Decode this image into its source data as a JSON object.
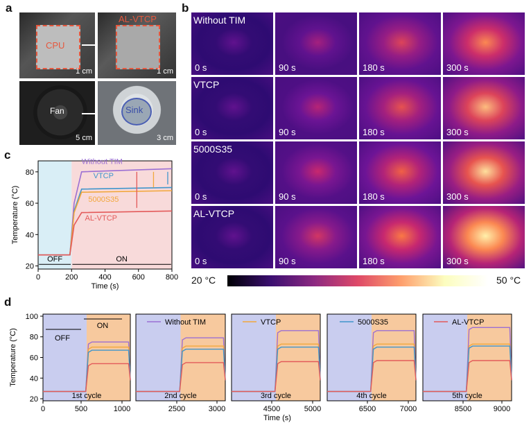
{
  "panel_a": {
    "label": "a",
    "photos": [
      {
        "tag": "CPU",
        "scale": "1 cm"
      },
      {
        "tag": "AL-VTCP",
        "scale": "1 cm"
      },
      {
        "tag": "Fan",
        "scale": "5 cm"
      },
      {
        "tag": "Sink",
        "scale": "3 cm"
      }
    ]
  },
  "panel_b": {
    "label": "b",
    "rows": [
      "Without TIM",
      "VTCP",
      "5000S35",
      "AL-VTCP"
    ],
    "times": [
      "0 s",
      "90 s",
      "180 s",
      "300 s"
    ],
    "colorbar_min": "20 °C",
    "colorbar_max": "50 °C"
  },
  "panel_c": {
    "label": "c"
  },
  "panel_d": {
    "label": "d"
  },
  "chart_data": [
    {
      "type": "line",
      "panel": "c",
      "xlabel": "Time (s)",
      "ylabel": "Temperature (°C)",
      "xlim": [
        0,
        800
      ],
      "ylim": [
        18,
        87
      ],
      "xticks": [
        "0",
        "200",
        "400",
        "600",
        "800"
      ],
      "yticks": [
        "20",
        "40",
        "60",
        "80"
      ],
      "regions": [
        {
          "name": "OFF",
          "from": 0,
          "to": 200
        },
        {
          "name": "ON",
          "from": 200,
          "to": 800
        }
      ],
      "region_labels": [
        "OFF",
        "ON"
      ],
      "series": [
        {
          "name": "Without TIM",
          "color": "#9b6fd3",
          "x": [
            0,
            190,
            215,
            260,
            800
          ],
          "y": [
            27,
            27,
            60,
            80,
            82
          ]
        },
        {
          "name": "VTCP",
          "color": "#3f95cc",
          "x": [
            0,
            190,
            215,
            260,
            800
          ],
          "y": [
            27,
            27,
            55,
            69,
            70
          ]
        },
        {
          "name": "5000S35",
          "color": "#f2a73b",
          "x": [
            0,
            190,
            215,
            260,
            800
          ],
          "y": [
            27,
            27,
            54,
            67,
            68
          ]
        },
        {
          "name": "AL-VTCP",
          "color": "#e35a5a",
          "x": [
            0,
            190,
            215,
            260,
            800
          ],
          "y": [
            27,
            27,
            46,
            54,
            55
          ]
        }
      ],
      "legend": [
        "Without TIM",
        "VTCP",
        "5000S35",
        "AL-VTCP"
      ]
    },
    {
      "type": "line",
      "panel": "d",
      "xlabel": "Time (s)",
      "ylabel": "Temperature (°C)",
      "ylim": [
        18,
        102
      ],
      "yticks": [
        "20",
        "40",
        "60",
        "80",
        "100"
      ],
      "xticks": [
        "0",
        "500",
        "1000",
        "2500",
        "3000",
        "4500",
        "5000",
        "6500",
        "7000",
        "8500",
        "9000"
      ],
      "cycles": [
        "1st cycle",
        "2nd cycle",
        "3rd cycle",
        "4th cycle",
        "5th cycle"
      ],
      "cycle_ranges": [
        [
          0,
          1000
        ],
        [
          2000,
          3000
        ],
        [
          4000,
          5000
        ],
        [
          6000,
          7000
        ],
        [
          8000,
          9000
        ]
      ],
      "region_labels": [
        "OFF",
        "ON"
      ],
      "plateaus": {
        "Without TIM": [
          75,
          79,
          86,
          86,
          89
        ],
        "VTCP": [
          70,
          71,
          73,
          73,
          73
        ],
        "5000S35": [
          67,
          68,
          70,
          70,
          71
        ],
        "AL-VTCP": [
          54,
          55,
          56,
          57,
          57
        ]
      },
      "series": [
        {
          "name": "Without TIM",
          "color": "#9b6fd3"
        },
        {
          "name": "VTCP",
          "color": "#f2a73b"
        },
        {
          "name": "5000S35",
          "color": "#3f95cc"
        },
        {
          "name": "AL-VTCP",
          "color": "#e35a5a"
        }
      ],
      "legend": [
        "Without TIM",
        "VTCP",
        "5000S35",
        "AL-VTCP"
      ]
    }
  ]
}
